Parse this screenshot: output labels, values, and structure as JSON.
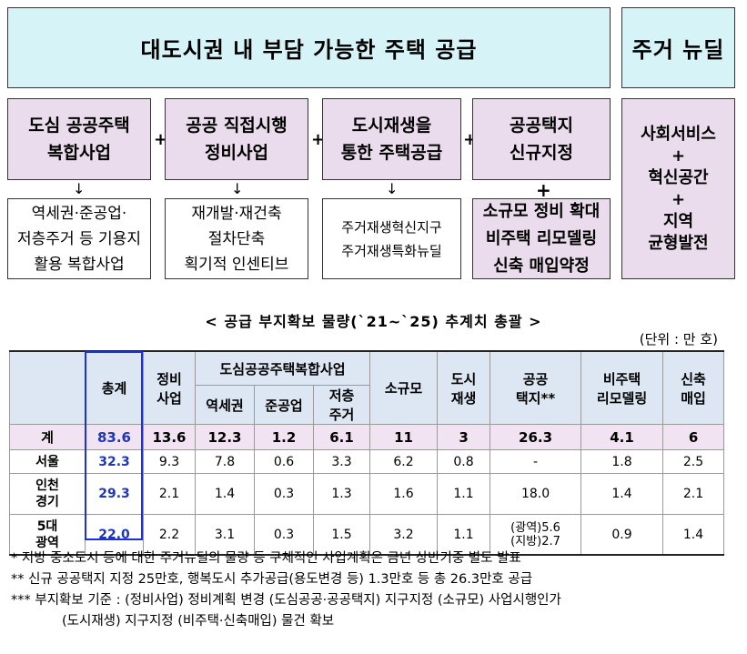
{
  "banner": {
    "main": "대도시권 내 부담 가능한 주택 공급",
    "side": "주거 뉴딜"
  },
  "categories": [
    {
      "lines": [
        "도심 공공주택",
        "복합사업"
      ]
    },
    {
      "lines": [
        "공공 직접시행",
        "정비사업"
      ]
    },
    {
      "lines": [
        "도시재생을",
        "통한 주택공급"
      ]
    },
    {
      "lines": [
        "공공택지",
        "신규지정"
      ]
    }
  ],
  "plus_sign": "+",
  "arrow_sign": "↓",
  "details": [
    {
      "lines": [
        "역세권·준공업·",
        "저층주거 등 기용지",
        "활용 복합사업"
      ]
    },
    {
      "lines": [
        "재개발·재건축",
        "절차단축",
        "획기적 인센티브"
      ]
    },
    {
      "lines": [
        "주거재생혁신지구",
        "주거재생특화뉴딜"
      ]
    },
    {
      "lines": [
        "소규모 정비 확대",
        "비주택 리모델링",
        "신축 매입약정"
      ]
    }
  ],
  "side_box": {
    "lines": [
      "사회서비스",
      "+",
      "혁신공간",
      "+",
      "지역",
      "균형발전"
    ]
  },
  "table": {
    "title": "< 공급 부지확보 물량(`21~`25) 추계치 총괄 >",
    "unit": "(단위 : 만 호)",
    "headers": {
      "total": "총계",
      "redevelop": [
        "정비",
        "사업"
      ],
      "downtown_group": "도심공공주택복합사업",
      "station": "역세권",
      "semi_industrial": "준공업",
      "lowrise": [
        "저층",
        "주거"
      ],
      "small": "소규모",
      "urban": [
        "도시",
        "재생"
      ],
      "public_land": [
        "공공",
        "택지**"
      ],
      "nonhousing": [
        "비주택",
        "리모델링"
      ],
      "newbuild": [
        "신축",
        "매입"
      ]
    },
    "rows": [
      {
        "label": [
          "계"
        ],
        "values": [
          "83.6",
          "13.6",
          "12.3",
          "1.2",
          "6.1",
          "11",
          "3",
          "26.3",
          "4.1",
          "6"
        ]
      },
      {
        "label": [
          "서울"
        ],
        "values": [
          "32.3",
          "9.3",
          "7.8",
          "0.6",
          "3.3",
          "6.2",
          "0.8",
          "-",
          "1.8",
          "2.5"
        ]
      },
      {
        "label": [
          "인천",
          "경기"
        ],
        "values": [
          "29.3",
          "2.1",
          "1.4",
          "0.3",
          "1.3",
          "1.6",
          "1.1",
          "18.0",
          "1.4",
          "2.1"
        ]
      },
      {
        "label": [
          "5대",
          "광역"
        ],
        "values": [
          "22.0",
          "2.2",
          "3.1",
          "0.3",
          "1.5",
          "3.2",
          "1.1",
          "",
          "0.9",
          "1.4"
        ],
        "public_land_split": [
          "(광역)5.6",
          "(지방)2.7"
        ]
      }
    ]
  },
  "notes": [
    "* 지방 중소도시 등에 대한 주거뉴딜의 물량 등 구체적인 사업계획은 금년 상반기중 별도 발표",
    "** 신규 공공택지 지정 25만호, 행복도시 추가공급(용도변경 등) 1.3만호 등 총 26.3만호 공급",
    "*** 부지확보 기준 : (정비사업) 정비계획 변경 (도심공공·공공택지) 지구지정 (소규모) 사업시행인가",
    "(도시재생) 지구지정 (비주택·신축매입) 물건 확보"
  ],
  "colors": {
    "banner_bg": "#d6f3f8",
    "category_bg": "#eadcec",
    "table_header_bg": "#dce7f3",
    "total_row_bg": "#f1e3f2",
    "total_column_text": "#1f36b8"
  }
}
